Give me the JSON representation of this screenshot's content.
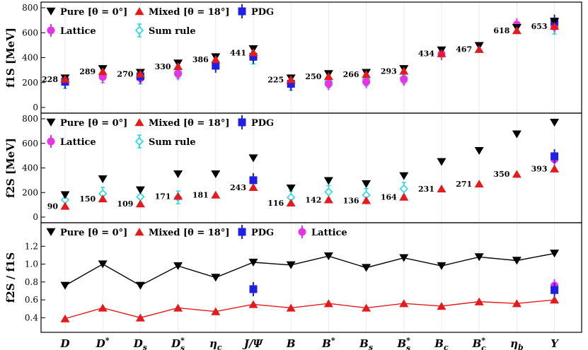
{
  "chart_data": {
    "type": "scatter",
    "categories": [
      "D",
      "D*",
      "Ds",
      "Ds*",
      "ηc",
      "J/Ψ",
      "B",
      "B*",
      "Bs",
      "Bs*",
      "Bc",
      "Bc*",
      "ηb",
      "Υ"
    ],
    "colors": {
      "pure": "#000000",
      "mixed": "#e41a1c",
      "pdg": "#1f1fe6",
      "lattice": "#e633e6",
      "sumrule": "#22d8e6"
    },
    "panels": [
      {
        "id": "f1s",
        "ylabel": "f1S [MeV]",
        "ylim": [
          0,
          800
        ],
        "yticks": [
          0,
          200,
          400,
          600,
          800
        ],
        "legend_row1": [
          {
            "name": "Pure [θ = 0°]",
            "series": "pure"
          },
          {
            "name": "Mixed [θ = 18°]",
            "series": "mixed"
          },
          {
            "name": "PDG",
            "series": "pdg"
          }
        ],
        "legend_row2": [
          {
            "name": "Lattice",
            "series": "lattice"
          },
          {
            "name": "Sum rule",
            "series": "sumrule"
          }
        ],
        "series": [
          {
            "name": "Pure [θ = 0°]",
            "key": "pure",
            "values": [
              235,
              310,
              280,
              355,
              405,
              470,
              235,
              270,
              280,
              310,
              460,
              495,
              640,
              690
            ]
          },
          {
            "name": "Mixed [θ = 18°]",
            "key": "mixed",
            "values": [
              228,
              289,
              270,
              330,
              386,
              441,
              225,
              250,
              266,
              293,
              434,
              467,
              618,
              653
            ]
          },
          {
            "name": "PDG",
            "key": "pdg",
            "values": [
              206,
              null,
              250,
              null,
              335,
              407,
              190,
              null,
              null,
              null,
              null,
              null,
              null,
              689
            ]
          },
          {
            "name": "Lattice",
            "key": "lattice",
            "values": [
              210,
              245,
              235,
              270,
              null,
              405,
              185,
              190,
              205,
              225,
              430,
              null,
              665,
              650
            ]
          },
          {
            "name": "Sum rule",
            "key": "sumrule",
            "values": [
              205,
              250,
              240,
              285,
              null,
              400,
              190,
              210,
              225,
              240,
              null,
              null,
              null,
              640
            ]
          }
        ],
        "labels": [
          "228",
          "289",
          "270",
          "330",
          "386",
          "441",
          "225",
          "250",
          "266",
          "293",
          "434",
          "467",
          "618",
          "653"
        ]
      },
      {
        "id": "f2s",
        "ylabel": "f2S [MeV]",
        "ylim": [
          0,
          800
        ],
        "yticks": [
          0,
          200,
          400,
          600,
          800
        ],
        "legend_row1": [
          {
            "name": "Pure [θ = 0°]",
            "series": "pure"
          },
          {
            "name": "Mixed [θ = 18°]",
            "series": "mixed"
          },
          {
            "name": "PDG",
            "series": "pdg"
          }
        ],
        "legend_row2": [
          {
            "name": "Lattice",
            "series": "lattice"
          },
          {
            "name": "Sum rule",
            "series": "sumrule"
          }
        ],
        "series": [
          {
            "name": "Pure [θ = 0°]",
            "key": "pure",
            "values": [
              180,
              310,
              220,
              350,
              350,
              480,
              235,
              295,
              270,
              335,
              450,
              540,
              675,
              770
            ]
          },
          {
            "name": "Mixed [θ = 18°]",
            "key": "mixed",
            "values": [
              90,
              150,
              109,
              171,
              181,
              243,
              116,
              142,
              136,
              164,
              231,
              271,
              350,
              393
            ]
          },
          {
            "name": "PDG",
            "key": "pdg",
            "values": [
              null,
              null,
              null,
              null,
              null,
              300,
              null,
              null,
              null,
              null,
              null,
              null,
              null,
              495
            ]
          },
          {
            "name": "Lattice",
            "key": "lattice",
            "values": [
              null,
              null,
              null,
              null,
              null,
              null,
              null,
              null,
              null,
              null,
              null,
              null,
              null,
              470
            ]
          },
          {
            "name": "Sum rule",
            "key": "sumrule",
            "values": [
              140,
              190,
              165,
              160,
              null,
              null,
              160,
              205,
              180,
              230,
              null,
              null,
              null,
              null
            ]
          }
        ],
        "labels": [
          "90",
          "150",
          "109",
          "171",
          "181",
          "243",
          "116",
          "142",
          "136",
          "164",
          "231",
          "271",
          "350",
          "393"
        ]
      },
      {
        "id": "ratio",
        "ylabel": "f2S / f1S",
        "ylim": [
          0.3,
          1.4
        ],
        "yticks": [
          0.4,
          0.6,
          0.8,
          1.0,
          1.2
        ],
        "legend_row1": [
          {
            "name": "Pure [θ = 0°]",
            "series": "pure"
          },
          {
            "name": "Mixed [θ = 18°]",
            "series": "mixed"
          },
          {
            "name": "PDG",
            "series": "pdg"
          },
          {
            "name": "Lattice",
            "series": "lattice"
          }
        ],
        "legend_row2": [],
        "series": [
          {
            "name": "Pure [θ = 0°]",
            "key": "pure",
            "values": [
              0.76,
              1.0,
              0.76,
              0.98,
              0.85,
              1.02,
              0.99,
              1.09,
              0.96,
              1.07,
              0.98,
              1.08,
              1.04,
              1.12
            ]
          },
          {
            "name": "Mixed [θ = 18°]",
            "key": "mixed",
            "values": [
              0.39,
              0.51,
              0.4,
              0.51,
              0.47,
              0.55,
              0.51,
              0.56,
              0.51,
              0.56,
              0.53,
              0.58,
              0.56,
              0.6
            ]
          },
          {
            "name": "PDG",
            "key": "pdg",
            "values": [
              null,
              null,
              null,
              null,
              null,
              0.72,
              null,
              null,
              null,
              null,
              null,
              null,
              null,
              0.71
            ]
          },
          {
            "name": "Lattice",
            "key": "lattice",
            "values": [
              null,
              null,
              null,
              null,
              null,
              null,
              null,
              null,
              null,
              null,
              null,
              null,
              null,
              0.76
            ]
          }
        ],
        "lines": [
          "pure",
          "mixed"
        ]
      }
    ]
  }
}
